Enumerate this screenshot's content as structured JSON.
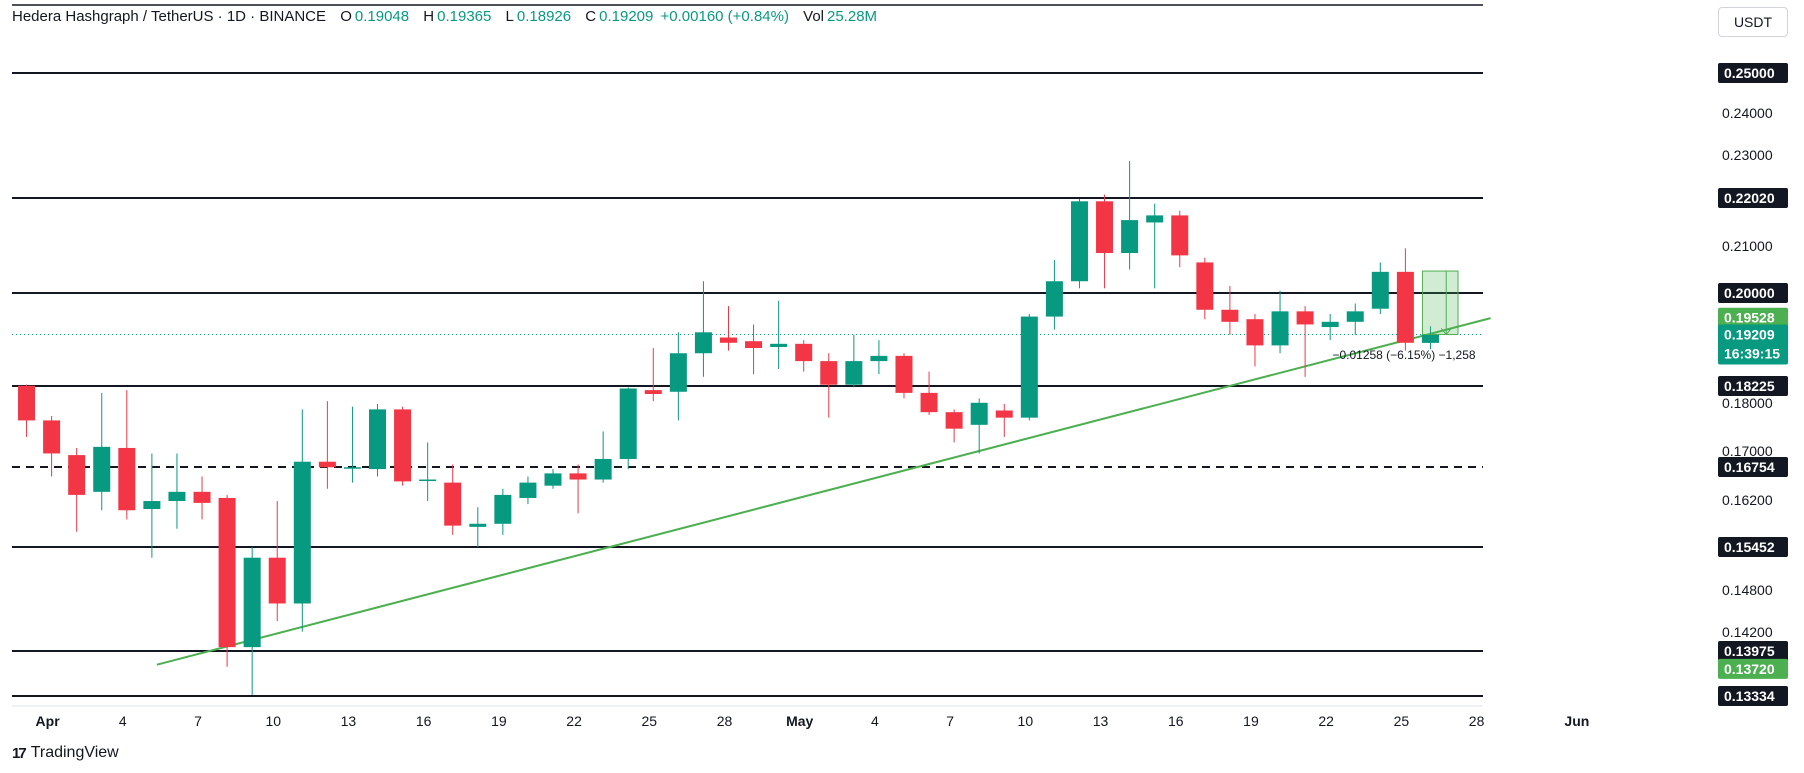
{
  "header": {
    "symbol": "Hedera Hashgraph / TetherUS · 1D · BINANCE",
    "o_label": "O",
    "o_value": "0.19048",
    "h_label": "H",
    "h_value": "0.19365",
    "l_label": "L",
    "l_value": "0.18926",
    "c_label": "C",
    "c_value": "0.19209",
    "change": "+0.00160 (+0.84%)",
    "vol_label": "Vol",
    "vol_value": "25.28M"
  },
  "currency": "USDT",
  "brand": {
    "logo_text": "17",
    "name": "TradingView"
  },
  "measure": {
    "label": "−0.01258 (−6.15%) −1,258"
  },
  "colors": {
    "up": "#089981",
    "down": "#f23645",
    "trend": "#4caf50",
    "text": "#131722"
  },
  "chart_data": {
    "type": "candlestick",
    "y_tick_labels": [
      "0.24000",
      "0.23000",
      "0.21000",
      "0.17000",
      "0.16200",
      "0.14800",
      "0.14200"
    ],
    "x_tick_labels": [
      {
        "label": "Apr",
        "i": 1
      },
      {
        "label": "4",
        "i": 4
      },
      {
        "label": "7",
        "i": 7
      },
      {
        "label": "10",
        "i": 10
      },
      {
        "label": "13",
        "i": 13
      },
      {
        "label": "16",
        "i": 16
      },
      {
        "label": "19",
        "i": 19
      },
      {
        "label": "22",
        "i": 22
      },
      {
        "label": "25",
        "i": 25
      },
      {
        "label": "28",
        "i": 28
      },
      {
        "label": "May",
        "i": 31
      },
      {
        "label": "4",
        "i": 34
      },
      {
        "label": "7",
        "i": 37
      },
      {
        "label": "10",
        "i": 40
      },
      {
        "label": "13",
        "i": 43
      },
      {
        "label": "16",
        "i": 46
      },
      {
        "label": "19",
        "i": 49
      },
      {
        "label": "22",
        "i": 52
      },
      {
        "label": "25",
        "i": 55
      },
      {
        "label": "28",
        "i": 58
      },
      {
        "label": "Jun",
        "i": 62
      }
    ],
    "levels": [
      {
        "value": 0.25,
        "label": "0.25000",
        "style": "solid"
      },
      {
        "value": 0.2202,
        "label": "0.22020",
        "style": "solid"
      },
      {
        "value": 0.2,
        "label": "0.20000",
        "style": "solid"
      },
      {
        "value": 0.18225,
        "label": "0.18225",
        "style": "solid"
      },
      {
        "value": 0.16754,
        "label": "0.16754",
        "style": "dashed"
      },
      {
        "value": 0.15452,
        "label": "0.15452",
        "style": "solid"
      },
      {
        "value": 0.13975,
        "label": "0.13975",
        "style": "solid"
      },
      {
        "value": 0.13334,
        "label": "0.13334",
        "style": "solid"
      }
    ],
    "price_tags": [
      {
        "value": 0.19528,
        "label": "0.19528",
        "color": "#4caf50"
      },
      {
        "value": 0.19209,
        "label": "0.19209",
        "color": "#089981",
        "sub": "16:39:15"
      },
      {
        "value": 0.1372,
        "label": "0.13720",
        "color": "#4caf50"
      }
    ],
    "current_price": 0.19209,
    "trendline": {
      "from": {
        "i": 5.2,
        "v": 0.1378
      },
      "to": {
        "i": 58.4,
        "v": 0.1952
      }
    },
    "measure_range": {
      "i_from": 56,
      "i_to": 56.7,
      "v_from": 0.20467,
      "v_to": 0.19209
    },
    "candles": [
      {
        "i": 0,
        "o": 0.1823,
        "h": 0.1825,
        "l": 0.173,
        "c": 0.176
      },
      {
        "i": 1,
        "o": 0.176,
        "h": 0.1768,
        "l": 0.166,
        "c": 0.17
      },
      {
        "i": 2,
        "o": 0.1697,
        "h": 0.171,
        "l": 0.157,
        "c": 0.163
      },
      {
        "i": 3,
        "o": 0.1635,
        "h": 0.181,
        "l": 0.1605,
        "c": 0.1712
      },
      {
        "i": 4,
        "o": 0.171,
        "h": 0.1815,
        "l": 0.159,
        "c": 0.1605
      },
      {
        "i": 5,
        "o": 0.1607,
        "h": 0.17,
        "l": 0.153,
        "c": 0.162
      },
      {
        "i": 6,
        "o": 0.162,
        "h": 0.17,
        "l": 0.1575,
        "c": 0.1635
      },
      {
        "i": 7,
        "o": 0.1635,
        "h": 0.166,
        "l": 0.159,
        "c": 0.1617
      },
      {
        "i": 8,
        "o": 0.1625,
        "h": 0.163,
        "l": 0.1375,
        "c": 0.1403
      },
      {
        "i": 9,
        "o": 0.1403,
        "h": 0.1545,
        "l": 0.1335,
        "c": 0.153
      },
      {
        "i": 10,
        "o": 0.153,
        "h": 0.162,
        "l": 0.144,
        "c": 0.1465
      },
      {
        "i": 11,
        "o": 0.1465,
        "h": 0.178,
        "l": 0.1425,
        "c": 0.1685
      },
      {
        "i": 12,
        "o": 0.1685,
        "h": 0.1795,
        "l": 0.164,
        "c": 0.1675
      },
      {
        "i": 13,
        "o": 0.1675,
        "h": 0.1785,
        "l": 0.165,
        "c": 0.1675
      },
      {
        "i": 14,
        "o": 0.1672,
        "h": 0.179,
        "l": 0.166,
        "c": 0.178
      },
      {
        "i": 15,
        "o": 0.178,
        "h": 0.1785,
        "l": 0.1645,
        "c": 0.1652
      },
      {
        "i": 16,
        "o": 0.1655,
        "h": 0.172,
        "l": 0.162,
        "c": 0.1655
      },
      {
        "i": 17,
        "o": 0.165,
        "h": 0.168,
        "l": 0.1565,
        "c": 0.158
      },
      {
        "i": 18,
        "o": 0.1578,
        "h": 0.161,
        "l": 0.1545,
        "c": 0.1583
      },
      {
        "i": 19,
        "o": 0.1583,
        "h": 0.164,
        "l": 0.1565,
        "c": 0.163
      },
      {
        "i": 20,
        "o": 0.1625,
        "h": 0.166,
        "l": 0.1615,
        "c": 0.165
      },
      {
        "i": 21,
        "o": 0.1645,
        "h": 0.1672,
        "l": 0.164,
        "c": 0.1665
      },
      {
        "i": 22,
        "o": 0.1665,
        "h": 0.168,
        "l": 0.16,
        "c": 0.1655
      },
      {
        "i": 23,
        "o": 0.1655,
        "h": 0.174,
        "l": 0.165,
        "c": 0.169
      },
      {
        "i": 24,
        "o": 0.169,
        "h": 0.182,
        "l": 0.1672,
        "c": 0.1818
      },
      {
        "i": 25,
        "o": 0.1815,
        "h": 0.1895,
        "l": 0.1795,
        "c": 0.1808
      },
      {
        "i": 26,
        "o": 0.1812,
        "h": 0.1925,
        "l": 0.176,
        "c": 0.1885
      },
      {
        "i": 27,
        "o": 0.1885,
        "h": 0.2025,
        "l": 0.184,
        "c": 0.1925
      },
      {
        "i": 28,
        "o": 0.1915,
        "h": 0.1975,
        "l": 0.189,
        "c": 0.1905
      },
      {
        "i": 29,
        "o": 0.1908,
        "h": 0.194,
        "l": 0.1845,
        "c": 0.1895
      },
      {
        "i": 30,
        "o": 0.1897,
        "h": 0.1985,
        "l": 0.1855,
        "c": 0.1903
      },
      {
        "i": 31,
        "o": 0.1903,
        "h": 0.191,
        "l": 0.185,
        "c": 0.187
      },
      {
        "i": 32,
        "o": 0.187,
        "h": 0.1885,
        "l": 0.1765,
        "c": 0.1825
      },
      {
        "i": 33,
        "o": 0.1825,
        "h": 0.192,
        "l": 0.182,
        "c": 0.187
      },
      {
        "i": 34,
        "o": 0.187,
        "h": 0.191,
        "l": 0.1845,
        "c": 0.188
      },
      {
        "i": 35,
        "o": 0.188,
        "h": 0.1885,
        "l": 0.18,
        "c": 0.181
      },
      {
        "i": 36,
        "o": 0.181,
        "h": 0.185,
        "l": 0.177,
        "c": 0.1775
      },
      {
        "i": 37,
        "o": 0.1775,
        "h": 0.178,
        "l": 0.172,
        "c": 0.1745
      },
      {
        "i": 38,
        "o": 0.1752,
        "h": 0.18,
        "l": 0.17,
        "c": 0.1792
      },
      {
        "i": 39,
        "o": 0.1778,
        "h": 0.179,
        "l": 0.173,
        "c": 0.1765
      },
      {
        "i": 40,
        "o": 0.1765,
        "h": 0.196,
        "l": 0.176,
        "c": 0.1955
      },
      {
        "i": 41,
        "o": 0.1955,
        "h": 0.207,
        "l": 0.193,
        "c": 0.2025
      },
      {
        "i": 42,
        "o": 0.2025,
        "h": 0.22,
        "l": 0.201,
        "c": 0.2195
      },
      {
        "i": 43,
        "o": 0.2195,
        "h": 0.221,
        "l": 0.201,
        "c": 0.2085
      },
      {
        "i": 44,
        "o": 0.2085,
        "h": 0.229,
        "l": 0.205,
        "c": 0.2155
      },
      {
        "i": 45,
        "o": 0.215,
        "h": 0.219,
        "l": 0.201,
        "c": 0.2165
      },
      {
        "i": 46,
        "o": 0.2165,
        "h": 0.2175,
        "l": 0.2055,
        "c": 0.208
      },
      {
        "i": 47,
        "o": 0.2065,
        "h": 0.2075,
        "l": 0.195,
        "c": 0.1968
      },
      {
        "i": 48,
        "o": 0.1968,
        "h": 0.2015,
        "l": 0.192,
        "c": 0.1945
      },
      {
        "i": 49,
        "o": 0.195,
        "h": 0.196,
        "l": 0.186,
        "c": 0.19
      },
      {
        "i": 50,
        "o": 0.19,
        "h": 0.2005,
        "l": 0.1885,
        "c": 0.1965
      },
      {
        "i": 51,
        "o": 0.1965,
        "h": 0.1975,
        "l": 0.184,
        "c": 0.194
      },
      {
        "i": 52,
        "o": 0.1935,
        "h": 0.196,
        "l": 0.191,
        "c": 0.1945
      },
      {
        "i": 53,
        "o": 0.1945,
        "h": 0.198,
        "l": 0.192,
        "c": 0.1965
      },
      {
        "i": 54,
        "o": 0.197,
        "h": 0.2065,
        "l": 0.196,
        "c": 0.2045
      },
      {
        "i": 55,
        "o": 0.2045,
        "h": 0.2095,
        "l": 0.189,
        "c": 0.1905
      },
      {
        "i": 56,
        "o": 0.19048,
        "h": 0.19365,
        "l": 0.18926,
        "c": 0.19209
      }
    ]
  }
}
